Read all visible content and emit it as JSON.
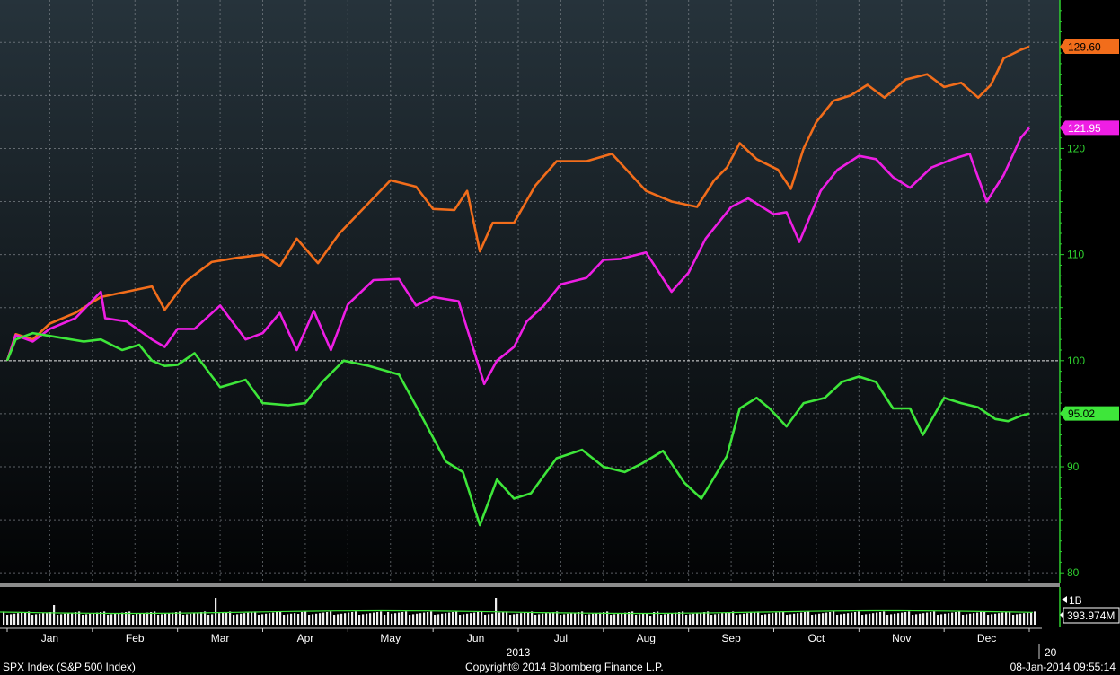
{
  "footer": {
    "left": "SPX Index (S&P 500 Index)",
    "center": "Copyright© 2014 Bloomberg Finance L.P.",
    "right": "08-Jan-2014 09:55:14"
  },
  "chart_data": {
    "type": "line",
    "ylim": [
      79,
      134
    ],
    "y_ticks": [
      80,
      90,
      100,
      110,
      120
    ],
    "x_range": [
      0,
      12.2
    ],
    "month_labels": [
      "Jan",
      "Feb",
      "Mar",
      "Apr",
      "May",
      "Jun",
      "Jul",
      "Aug",
      "Sep",
      "Oct",
      "Nov",
      "Dec"
    ],
    "year_label": "2013",
    "next_year_label": "20",
    "baseline": 100,
    "colors": {
      "orange": "#f26d1b",
      "magenta": "#ee1ee4",
      "green": "#3ee63a",
      "axis": "#2fd12f"
    },
    "series": [
      {
        "color": "orange",
        "last_value": "129.60",
        "x": [
          0,
          0.1,
          0.3,
          0.5,
          0.8,
          1.1,
          1.4,
          1.7,
          1.85,
          2.1,
          2.4,
          2.7,
          3.0,
          3.2,
          3.4,
          3.65,
          3.9,
          4.2,
          4.5,
          4.8,
          5.0,
          5.25,
          5.4,
          5.55,
          5.7,
          5.95,
          6.2,
          6.45,
          6.8,
          7.1,
          7.5,
          7.8,
          8.1,
          8.3,
          8.45,
          8.6,
          8.8,
          9.05,
          9.2,
          9.35,
          9.5,
          9.7,
          9.9,
          10.1,
          10.3,
          10.55,
          10.8,
          11.0,
          11.2,
          11.4,
          11.55,
          11.7,
          11.9,
          12.0
        ],
        "values": [
          100,
          102.5,
          102,
          103.5,
          104.5,
          106,
          106.5,
          107,
          104.8,
          107.5,
          109.3,
          109.7,
          110,
          108.9,
          111.5,
          109.2,
          112,
          114.5,
          117,
          116.4,
          114.3,
          114.2,
          116,
          110.3,
          113,
          113,
          116.5,
          118.8,
          118.8,
          119.5,
          116,
          115,
          114.5,
          117,
          118.2,
          120.5,
          119,
          118,
          116.2,
          120,
          122.5,
          124.5,
          125,
          126,
          124.8,
          126.5,
          127,
          125.8,
          126.2,
          124.8,
          126,
          128.5,
          129.3,
          129.6
        ]
      },
      {
        "color": "magenta",
        "last_value": "121.95",
        "x": [
          0,
          0.1,
          0.3,
          0.5,
          0.8,
          1.1,
          1.15,
          1.4,
          1.7,
          1.85,
          2.0,
          2.2,
          2.5,
          2.8,
          3.0,
          3.2,
          3.4,
          3.6,
          3.8,
          4.0,
          4.3,
          4.6,
          4.8,
          5.0,
          5.3,
          5.6,
          5.75,
          5.95,
          6.1,
          6.3,
          6.5,
          6.8,
          7.0,
          7.2,
          7.5,
          7.8,
          8.0,
          8.2,
          8.5,
          8.7,
          9.0,
          9.15,
          9.3,
          9.55,
          9.75,
          10.0,
          10.2,
          10.4,
          10.6,
          10.85,
          11.1,
          11.3,
          11.5,
          11.7,
          11.9,
          12.0
        ],
        "values": [
          100,
          102.4,
          101.8,
          103,
          104,
          106.5,
          104,
          103.7,
          102,
          101.3,
          103,
          103,
          105.2,
          102,
          102.6,
          104.5,
          101,
          104.7,
          101,
          105.3,
          107.6,
          107.7,
          105.2,
          106,
          105.6,
          97.8,
          100,
          101.3,
          103.7,
          105.2,
          107.2,
          107.8,
          109.5,
          109.6,
          110.2,
          106.5,
          108.3,
          111.5,
          114.5,
          115.3,
          113.8,
          114,
          111.2,
          116,
          118,
          119.3,
          119,
          117.3,
          116.3,
          118.2,
          119,
          119.5,
          115,
          117.5,
          121,
          121.95
        ]
      },
      {
        "color": "green",
        "last_value": "95.02",
        "x": [
          0,
          0.1,
          0.3,
          0.6,
          0.9,
          1.1,
          1.35,
          1.55,
          1.7,
          1.85,
          2.0,
          2.2,
          2.5,
          2.8,
          3.0,
          3.3,
          3.5,
          3.7,
          3.95,
          4.25,
          4.6,
          4.85,
          5.15,
          5.35,
          5.55,
          5.75,
          5.95,
          6.15,
          6.45,
          6.75,
          7.0,
          7.25,
          7.45,
          7.7,
          7.95,
          8.15,
          8.45,
          8.6,
          8.8,
          8.95,
          9.15,
          9.35,
          9.6,
          9.8,
          10.0,
          10.2,
          10.4,
          10.6,
          10.75,
          11.0,
          11.2,
          11.4,
          11.6,
          11.75,
          11.9,
          12.0
        ],
        "values": [
          100,
          102,
          102.6,
          102.2,
          101.8,
          102,
          101,
          101.5,
          100,
          99.5,
          99.6,
          100.7,
          97.5,
          98.2,
          96,
          95.8,
          96,
          98,
          100,
          99.5,
          98.7,
          95,
          90.5,
          89.5,
          84.5,
          88.8,
          87,
          87.5,
          90.8,
          91.6,
          90,
          89.5,
          90.3,
          91.5,
          88.5,
          87,
          91,
          95.5,
          96.5,
          95.5,
          93.8,
          96,
          96.5,
          98,
          98.5,
          98,
          95.5,
          95.5,
          93,
          96.5,
          96,
          95.6,
          94.5,
          94.3,
          94.8,
          95.02
        ]
      }
    ],
    "volume_label_top": "1B",
    "volume_value": "393.974M"
  }
}
